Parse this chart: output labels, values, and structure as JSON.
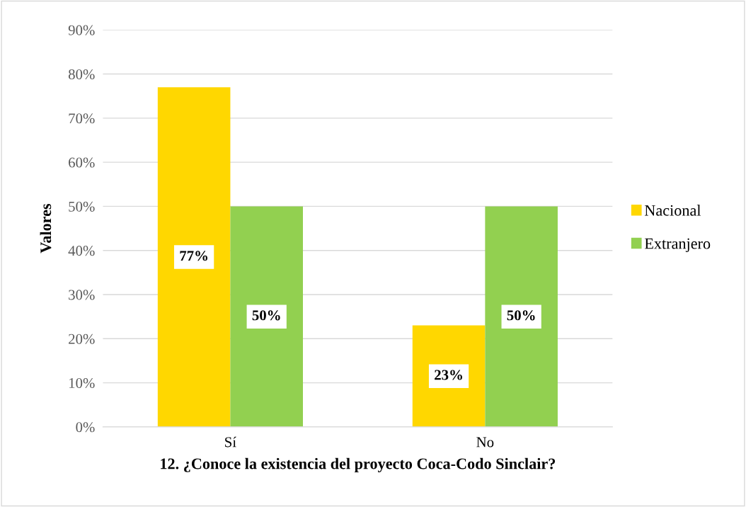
{
  "chart_data": {
    "type": "bar",
    "xlabel": "12. ¿Conoce la existencia del proyecto Coca-Codo Sinclair?",
    "ylabel": "Valores",
    "categories": [
      "Sí",
      "No"
    ],
    "series": [
      {
        "name": "Nacional",
        "color": "#ffd700",
        "values": [
          77,
          23
        ],
        "value_labels": [
          "77%",
          "23%"
        ]
      },
      {
        "name": "Extranjero",
        "color": "#92d050",
        "values": [
          50,
          50
        ],
        "value_labels": [
          "50%",
          "50%"
        ]
      }
    ],
    "ylim": [
      0,
      90
    ],
    "yticks": [
      {
        "value": 0,
        "label": "0%"
      },
      {
        "value": 10,
        "label": "10%"
      },
      {
        "value": 20,
        "label": "20%"
      },
      {
        "value": 30,
        "label": "30%"
      },
      {
        "value": 40,
        "label": "40%"
      },
      {
        "value": 50,
        "label": "50%"
      },
      {
        "value": 60,
        "label": "60%"
      },
      {
        "value": 70,
        "label": "70%"
      },
      {
        "value": 80,
        "label": "80%"
      },
      {
        "value": 90,
        "label": "90%"
      }
    ],
    "grid": "y",
    "legend": "right"
  }
}
